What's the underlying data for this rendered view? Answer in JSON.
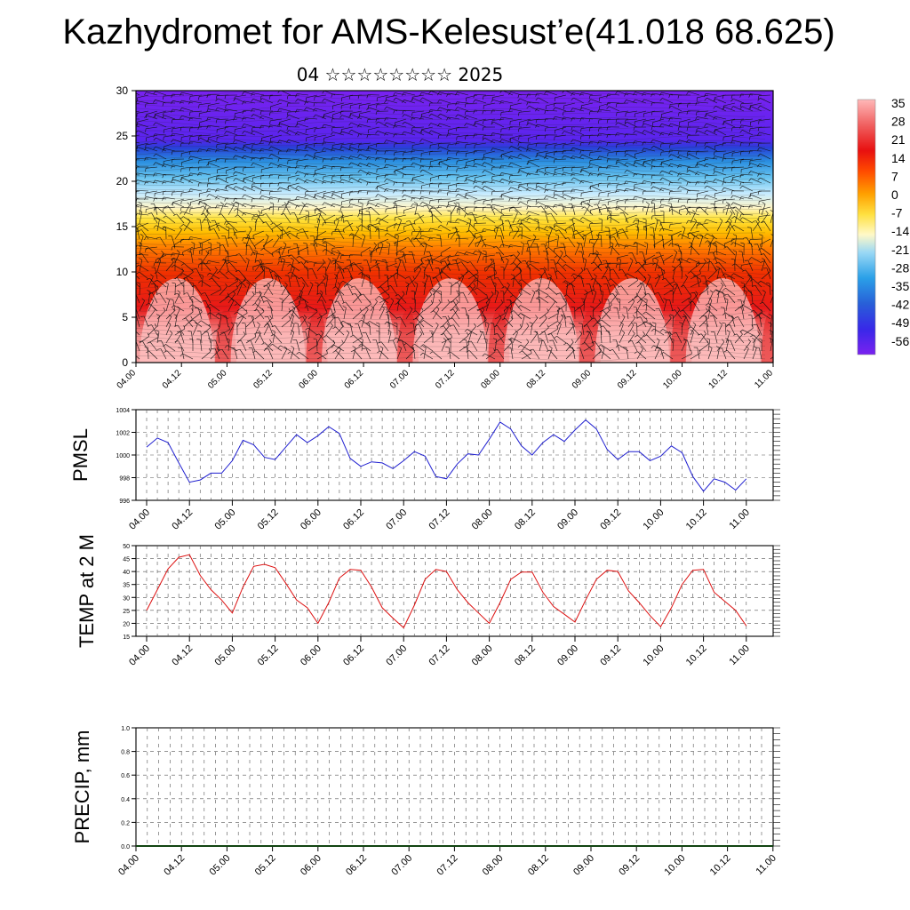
{
  "page": {
    "title": "Kazhydromet for AMS-Kelesust’e(41.018 68.625)",
    "subtitle": "04 ☆☆☆☆☆☆☆☆ 2025"
  },
  "colors": {
    "pmsl_line": "#1f1fd0",
    "temp_line": "#dd1111",
    "grid": "#555555"
  },
  "chart_data": [
    {
      "type": "heatmap",
      "name": "height-time-section",
      "ylim": [
        0,
        30
      ],
      "yticks": [
        "0",
        "5",
        "10",
        "15",
        "20",
        "25",
        "30"
      ],
      "xticks": [
        "04.00",
        "04.12",
        "05.00",
        "05.12",
        "06.00",
        "06.12",
        "07.00",
        "07.12",
        "08.00",
        "08.12",
        "09.00",
        "09.12",
        "10.00",
        "10.12",
        "11.00"
      ],
      "colorbar": {
        "labels": [
          "35",
          "28",
          "21",
          "14",
          "7",
          "0",
          "-7",
          "-14",
          "-21",
          "-28",
          "-35",
          "-42",
          "-49",
          "-56"
        ],
        "colors": [
          "#ffb0b0",
          "#ff7f7f",
          "#e81010",
          "#ff3a00",
          "#ff8c00",
          "#ffc400",
          "#ffee40",
          "#fff9c0",
          "#c8ecff",
          "#7ad0f5",
          "#2aa0e8",
          "#2860d8",
          "#3828e8",
          "#7a22f0"
        ]
      }
    },
    {
      "type": "line",
      "ylabel": "PMSL",
      "ylim": [
        996,
        1004
      ],
      "yticks": [
        "996",
        "998",
        "1000",
        "1002",
        "1004"
      ],
      "xticks": [
        "04.00",
        "04.12",
        "05.00",
        "05.12",
        "06.00",
        "06.12",
        "07.00",
        "07.12",
        "08.00",
        "08.12",
        "09.00",
        "09.12",
        "10.00",
        "10.12",
        "11.00"
      ],
      "x": [
        0,
        3,
        6,
        9,
        12,
        15,
        18,
        21,
        24,
        27,
        30,
        33,
        36,
        39,
        42,
        45,
        48,
        51,
        54,
        57,
        60,
        63,
        66,
        69,
        72,
        75,
        78,
        81,
        84,
        87,
        90,
        93,
        96,
        99,
        102,
        105,
        108,
        111,
        114,
        117,
        120,
        123,
        126,
        129,
        132,
        135,
        138,
        141,
        144,
        147,
        150,
        153,
        156,
        159,
        162,
        165,
        168
      ],
      "series": [
        {
          "values": [
            1000.7,
            1001.5,
            1001.1,
            999.3,
            997.6,
            997.8,
            998.4,
            998.4,
            999.5,
            1001.3,
            1000.9,
            999.8,
            999.6,
            1000.7,
            1001.8,
            1001.1,
            1001.7,
            1002.5,
            1001.9,
            999.7,
            999.0,
            999.4,
            999.3,
            998.8,
            999.5,
            1000.3,
            999.9,
            998.1,
            997.9,
            999.2,
            1000.1,
            1000.0,
            1001.4,
            1002.9,
            1002.3,
            1000.8,
            1000.0,
            1001.1,
            1001.8,
            1001.2,
            1002.2,
            1003.1,
            1002.3,
            1000.5,
            999.6,
            1000.3,
            1000.3,
            999.5,
            999.9,
            1000.8,
            1000.2,
            998.1,
            996.8,
            997.9,
            997.6,
            996.9,
            997.9
          ]
        }
      ]
    },
    {
      "type": "line",
      "ylabel": "TEMP at 2 M",
      "ylim": [
        15,
        50
      ],
      "yticks": [
        "15",
        "20",
        "25",
        "30",
        "35",
        "40",
        "45",
        "50"
      ],
      "xticks": [
        "04.00",
        "04.12",
        "05.00",
        "05.12",
        "06.00",
        "06.12",
        "07.00",
        "07.12",
        "08.00",
        "08.12",
        "09.00",
        "09.12",
        "10.00",
        "10.12",
        "11.00"
      ],
      "x": [
        0,
        3,
        6,
        9,
        12,
        15,
        18,
        21,
        24,
        27,
        30,
        33,
        36,
        39,
        42,
        45,
        48,
        51,
        54,
        57,
        60,
        63,
        66,
        69,
        72,
        75,
        78,
        81,
        84,
        87,
        90,
        93,
        96,
        99,
        102,
        105,
        108,
        111,
        114,
        117,
        120,
        123,
        126,
        129,
        132,
        135,
        138,
        141,
        144,
        147,
        150,
        153,
        156,
        159,
        162,
        165,
        168
      ],
      "series": [
        {
          "values": [
            25.0,
            33.0,
            41.0,
            45.5,
            46.5,
            38.5,
            33.0,
            29.0,
            24.0,
            34.0,
            42.0,
            42.8,
            41.5,
            35.5,
            29.0,
            26.0,
            20.0,
            28.0,
            37.5,
            40.8,
            40.5,
            34.0,
            26.0,
            22.0,
            18.3,
            27.0,
            37.0,
            40.8,
            40.0,
            33.0,
            28.0,
            24.0,
            20.0,
            28.0,
            37.0,
            39.8,
            39.8,
            32.0,
            26.5,
            23.5,
            20.5,
            29.0,
            37.0,
            40.5,
            40.0,
            32.5,
            28.0,
            23.0,
            18.7,
            26.0,
            35.0,
            40.5,
            40.8,
            32.0,
            28.5,
            25.0,
            19.0
          ]
        }
      ]
    },
    {
      "type": "bar",
      "ylabel": "PRECIP, mm",
      "ylim": [
        0.0,
        1.0
      ],
      "yticks": [
        "0.0",
        "0.2",
        "0.4",
        "0.6",
        "0.8",
        "1.0"
      ],
      "xticks": [
        "04.00",
        "04.12",
        "05.00",
        "05.12",
        "06.00",
        "06.12",
        "07.00",
        "07.12",
        "08.00",
        "08.12",
        "09.00",
        "09.12",
        "10.00",
        "10.12",
        "11.00"
      ],
      "values": []
    }
  ]
}
